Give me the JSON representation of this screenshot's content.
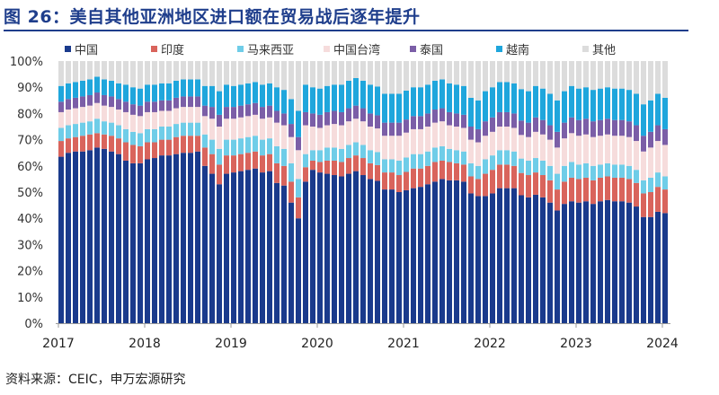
{
  "title": "图 26：美自其他亚洲地区进口额在贸易战后逐年提升",
  "source": "资料来源：CEIC，申万宏源研究",
  "chart_data": {
    "type": "bar",
    "stacked": true,
    "title": "图 26：美自其他亚洲地区进口额在贸易战后逐年提升",
    "xlabel": "",
    "ylabel": "",
    "ylim": [
      0,
      100
    ],
    "yticks": [
      "0%",
      "10%",
      "20%",
      "30%",
      "40%",
      "50%",
      "60%",
      "70%",
      "80%",
      "90%",
      "100%"
    ],
    "xticks": [
      "2017",
      "2018",
      "2019",
      "2020",
      "2021",
      "2022",
      "2023",
      "2024"
    ],
    "frequency": "monthly",
    "grid": false,
    "legend": "top",
    "series": [
      {
        "name": "中国",
        "color": "#1a3a8c",
        "values": [
          63.5,
          65,
          65.5,
          65.5,
          66,
          67,
          66.5,
          65.5,
          64.5,
          62,
          61,
          61,
          62.5,
          63,
          64,
          64,
          64.5,
          65,
          65,
          65.5,
          60,
          57,
          53,
          57,
          57.5,
          58,
          58.5,
          59,
          57.5,
          58,
          53.5,
          52.5,
          46,
          40,
          54,
          58.5,
          57.5,
          57,
          56.5,
          56,
          57,
          58,
          56.5,
          55,
          54.3,
          51,
          51,
          50,
          50.7,
          51.5,
          52,
          53,
          54,
          55,
          54.5,
          54.5,
          54,
          49.5,
          48.5,
          48.5,
          49.5,
          51.5,
          51.5,
          51.5,
          48.8,
          48,
          49,
          48,
          46,
          43,
          45.5,
          46.5,
          46,
          46.5,
          45.5,
          46.5,
          47,
          46.5,
          46.5,
          46,
          44.5,
          40.5,
          40.5,
          42.5,
          42
        ]
      },
      {
        "name": "印度",
        "color": "#d9645c",
        "values": [
          6,
          5.5,
          5.5,
          6,
          6,
          5.5,
          5.5,
          6,
          6,
          7,
          7,
          6.5,
          6.5,
          6,
          6,
          6,
          6.5,
          6.5,
          6.5,
          6,
          7,
          7.5,
          7.5,
          7,
          6.5,
          6.5,
          6.5,
          6.5,
          6.5,
          6.5,
          7.5,
          7.5,
          8,
          8,
          5.5,
          3.5,
          4,
          5,
          5.5,
          5.5,
          6,
          6,
          6.5,
          6,
          6,
          6.5,
          6.5,
          6.5,
          7,
          7.5,
          7,
          7,
          7.5,
          7,
          7,
          6.5,
          6.5,
          6.5,
          6.5,
          8.5,
          9,
          9,
          9,
          8.5,
          8.5,
          8.5,
          8.5,
          8.5,
          8.5,
          8,
          8.5,
          9,
          9,
          9,
          9,
          9,
          9,
          9,
          9,
          9,
          9,
          9,
          9.5,
          9.5,
          9
        ]
      },
      {
        "name": "马来西亚",
        "color": "#6fcde8",
        "values": [
          5,
          5,
          5,
          5,
          5,
          5.5,
          5,
          5,
          5,
          5,
          5,
          5,
          5,
          5,
          5,
          5,
          5,
          5,
          5,
          5,
          5,
          5.5,
          6,
          6,
          6,
          6,
          6,
          6,
          6,
          6,
          6.5,
          6.5,
          7,
          7,
          5,
          4,
          4.5,
          5,
          5,
          5,
          5,
          5,
          5,
          5,
          5,
          5,
          5,
          5.5,
          5.5,
          5.5,
          5.5,
          5.5,
          5.5,
          5.5,
          5,
          5,
          5,
          5,
          5,
          5.5,
          5.5,
          5.5,
          5.5,
          5.5,
          5.5,
          5.5,
          5.5,
          5.5,
          5.5,
          6,
          6,
          6,
          5.5,
          5.5,
          5.5,
          5,
          5,
          5,
          5,
          5,
          5,
          5,
          5.5,
          5.5,
          5
        ]
      },
      {
        "name": "中国台湾",
        "color": "#f6dcdc",
        "values": [
          6,
          6,
          6,
          6,
          6,
          6,
          6,
          6,
          6,
          6.5,
          6.5,
          6.5,
          6.5,
          6.5,
          6,
          6,
          6,
          6,
          6,
          6,
          7,
          8,
          8.5,
          8,
          8,
          8,
          8,
          8,
          8,
          8,
          9,
          9,
          10,
          11,
          11,
          9,
          8.5,
          8.5,
          9,
          9,
          9,
          9,
          9,
          9,
          9,
          9,
          9,
          9.5,
          9.5,
          9.5,
          9.5,
          9.5,
          9.5,
          9.5,
          9,
          9,
          9,
          9,
          9,
          9,
          9,
          9,
          9,
          9,
          9,
          9,
          10,
          10,
          10,
          10,
          10.5,
          11,
          11,
          11,
          11,
          11,
          11,
          11,
          11,
          11,
          11,
          11,
          11.5,
          12,
          12
        ]
      },
      {
        "name": "泰国",
        "color": "#7b5ea7",
        "values": [
          4,
          4,
          4,
          4,
          4,
          4,
          4,
          4,
          4,
          4,
          4,
          4,
          4,
          4,
          4,
          4,
          4,
          4,
          4,
          4,
          4,
          4.5,
          4.5,
          4.5,
          4.5,
          4.5,
          4.5,
          4.5,
          4.5,
          4.5,
          4.5,
          4.5,
          5,
          5,
          5,
          5,
          5,
          5,
          5,
          5,
          5,
          5,
          5,
          5,
          5,
          5,
          5,
          5,
          5,
          5,
          5,
          5,
          5,
          5,
          5,
          5,
          5,
          5,
          5,
          5.5,
          5.5,
          5.5,
          5.5,
          5.5,
          5.5,
          5.5,
          5.5,
          5.5,
          5.5,
          6,
          6,
          6,
          6,
          6,
          6,
          6,
          6,
          6,
          6,
          6,
          6,
          6,
          6,
          6,
          6
        ]
      },
      {
        "name": "越南",
        "color": "#1fa6dc",
        "values": [
          6,
          6,
          6,
          6,
          6,
          6,
          6,
          6,
          6,
          6.5,
          6.5,
          6.5,
          6.5,
          6.5,
          6.5,
          6.5,
          6.5,
          6.5,
          6.5,
          6.5,
          7.5,
          8,
          9,
          8.5,
          8,
          8,
          8,
          8,
          8.5,
          8.5,
          9,
          9,
          9.5,
          10,
          10.5,
          10,
          10,
          10,
          10,
          10.5,
          10.5,
          10.5,
          10.5,
          11,
          11,
          11,
          11,
          11,
          11,
          11,
          11,
          11,
          11,
          11,
          11,
          11,
          11,
          11,
          11,
          11.5,
          11.5,
          11.5,
          11.5,
          11.5,
          12,
          12,
          12,
          12,
          12,
          12,
          12,
          12,
          12,
          12,
          12,
          12,
          12,
          12,
          12,
          12,
          12,
          12,
          12,
          12,
          12
        ]
      },
      {
        "name": "其他",
        "color": "#dcdcdc",
        "values": "remainder-to-100"
      }
    ]
  }
}
